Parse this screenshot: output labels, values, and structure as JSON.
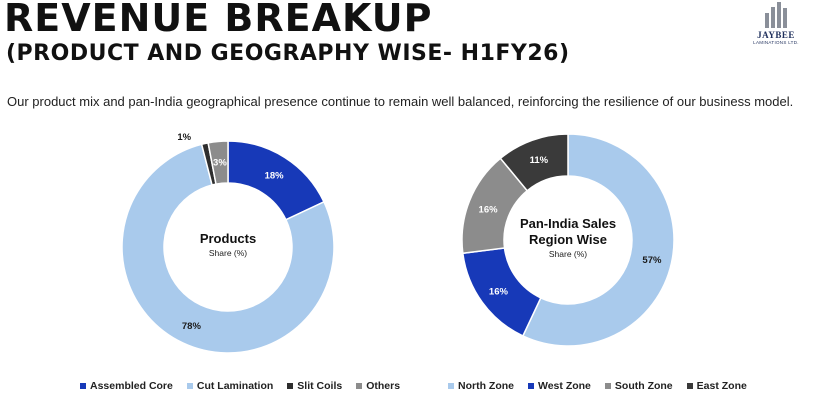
{
  "header": {
    "title": "REVENUE BREAKUP",
    "subtitle": "(PRODUCT AND GEOGRAPHY WISE- H1FY26)",
    "description": "Our product mix and pan-India geographical presence continue to remain well balanced, reinforcing the resilience of our business model."
  },
  "logo": {
    "name": "JAYBEE",
    "sub": "LAMINATIONS LTD."
  },
  "chart_data": [
    {
      "type": "pie",
      "variant": "donut",
      "title": "Products",
      "subtitle": "Share (%)",
      "categories": [
        "Assembled Core",
        "Cut Lamination",
        "Slit Coils",
        "Others"
      ],
      "values": [
        18,
        78,
        1,
        3
      ],
      "labels": [
        "18%",
        "78%",
        "1%",
        "3%"
      ],
      "colors": [
        "#1739b8",
        "#a9caec",
        "#2e2e2e",
        "#8c8c8c"
      ],
      "legend": "bottom"
    },
    {
      "type": "pie",
      "variant": "donut",
      "title": "Pan-India Sales Region Wise",
      "subtitle": "Share (%)",
      "categories": [
        "North Zone",
        "West Zone",
        "South Zone",
        "East Zone"
      ],
      "values": [
        57,
        16,
        16,
        11
      ],
      "labels": [
        "57%",
        "16%",
        "16%",
        "11%"
      ],
      "colors": [
        "#a9caec",
        "#1739b8",
        "#8c8c8c",
        "#3a3a3a"
      ],
      "legend": "bottom"
    }
  ]
}
